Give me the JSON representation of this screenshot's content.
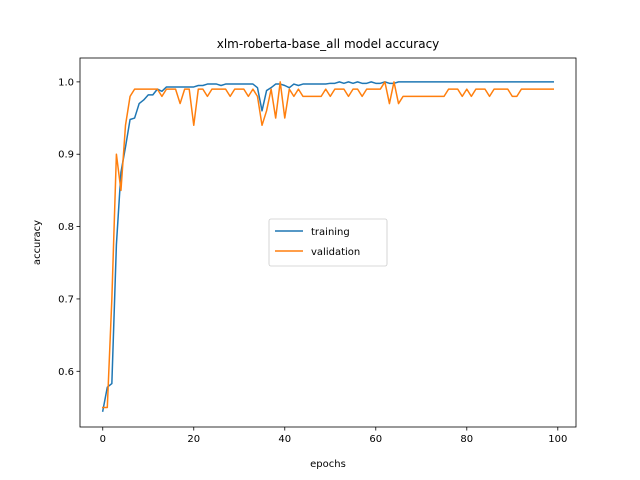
{
  "chart_data": {
    "type": "line",
    "title": "xlm-roberta-base_all model accuracy",
    "xlabel": "epochs",
    "ylabel": "accuracy",
    "xlim": [
      -5,
      104
    ],
    "ylim": [
      0.523,
      1.033
    ],
    "xticks": [
      0,
      20,
      40,
      60,
      80,
      100
    ],
    "yticks": [
      0.6,
      0.7,
      0.8,
      0.9,
      1.0
    ],
    "xtick_labels": [
      "0",
      "20",
      "40",
      "60",
      "80",
      "100"
    ],
    "ytick_labels": [
      "0.6",
      "0.7",
      "0.8",
      "0.9",
      "1.0"
    ],
    "legend_position": "center",
    "grid": false,
    "series": [
      {
        "name": "training",
        "color": "#1f77b4",
        "x": [
          0,
          1,
          2,
          3,
          4,
          5,
          6,
          7,
          8,
          9,
          10,
          11,
          12,
          13,
          14,
          15,
          16,
          17,
          18,
          19,
          20,
          21,
          22,
          23,
          24,
          25,
          26,
          27,
          28,
          29,
          30,
          31,
          32,
          33,
          34,
          35,
          36,
          37,
          38,
          39,
          40,
          41,
          42,
          43,
          44,
          45,
          46,
          47,
          48,
          49,
          50,
          51,
          52,
          53,
          54,
          55,
          56,
          57,
          58,
          59,
          60,
          61,
          62,
          63,
          64,
          65,
          66,
          67,
          68,
          69,
          70,
          71,
          72,
          73,
          74,
          75,
          76,
          77,
          78,
          79,
          80,
          81,
          82,
          83,
          84,
          85,
          86,
          87,
          88,
          89,
          90,
          91,
          92,
          93,
          94,
          95,
          96,
          97,
          98,
          99
        ],
        "y": [
          0.545,
          0.578,
          0.583,
          0.775,
          0.875,
          0.91,
          0.948,
          0.95,
          0.97,
          0.975,
          0.982,
          0.982,
          0.99,
          0.987,
          0.993,
          0.993,
          0.993,
          0.993,
          0.993,
          0.993,
          0.993,
          0.995,
          0.995,
          0.997,
          0.997,
          0.997,
          0.995,
          0.997,
          0.997,
          0.997,
          0.997,
          0.997,
          0.997,
          0.997,
          0.992,
          0.96,
          0.988,
          0.992,
          0.997,
          0.997,
          0.995,
          0.992,
          0.997,
          0.995,
          0.997,
          0.997,
          0.997,
          0.997,
          0.997,
          0.997,
          0.998,
          0.998,
          1.0,
          0.998,
          1.0,
          0.998,
          1.0,
          0.998,
          0.998,
          1.0,
          0.998,
          0.998,
          1.0,
          0.998,
          0.998,
          1.0,
          1.0,
          1.0,
          1.0,
          1.0,
          1.0,
          1.0,
          1.0,
          1.0,
          1.0,
          1.0,
          1.0,
          1.0,
          1.0,
          1.0,
          1.0,
          1.0,
          1.0,
          1.0,
          1.0,
          1.0,
          1.0,
          1.0,
          1.0,
          1.0,
          1.0,
          1.0,
          1.0,
          1.0,
          1.0,
          1.0,
          1.0,
          1.0,
          1.0,
          1.0
        ]
      },
      {
        "name": "validation",
        "color": "#ff7f0e",
        "x": [
          0,
          1,
          2,
          3,
          4,
          5,
          6,
          7,
          8,
          9,
          10,
          11,
          12,
          13,
          14,
          15,
          16,
          17,
          18,
          19,
          20,
          21,
          22,
          23,
          24,
          25,
          26,
          27,
          28,
          29,
          30,
          31,
          32,
          33,
          34,
          35,
          36,
          37,
          38,
          39,
          40,
          41,
          42,
          43,
          44,
          45,
          46,
          47,
          48,
          49,
          50,
          51,
          52,
          53,
          54,
          55,
          56,
          57,
          58,
          59,
          60,
          61,
          62,
          63,
          64,
          65,
          66,
          67,
          68,
          69,
          70,
          71,
          72,
          73,
          74,
          75,
          76,
          77,
          78,
          79,
          80,
          81,
          82,
          83,
          84,
          85,
          86,
          87,
          88,
          89,
          90,
          91,
          92,
          93,
          94,
          95,
          96,
          97,
          98,
          99
        ],
        "y": [
          0.55,
          0.55,
          0.7,
          0.9,
          0.85,
          0.94,
          0.98,
          0.99,
          0.99,
          0.99,
          0.99,
          0.99,
          0.99,
          0.98,
          0.99,
          0.99,
          0.99,
          0.97,
          0.99,
          0.99,
          0.94,
          0.99,
          0.99,
          0.98,
          0.99,
          0.99,
          0.99,
          0.99,
          0.98,
          0.99,
          0.99,
          0.99,
          0.98,
          0.99,
          0.98,
          0.94,
          0.96,
          0.99,
          0.95,
          1.0,
          0.95,
          0.99,
          0.98,
          0.99,
          0.98,
          0.98,
          0.98,
          0.98,
          0.98,
          0.99,
          0.98,
          0.99,
          0.99,
          0.99,
          0.98,
          0.99,
          0.99,
          0.98,
          0.99,
          0.99,
          0.99,
          0.99,
          1.0,
          0.97,
          1.0,
          0.97,
          0.98,
          0.98,
          0.98,
          0.98,
          0.98,
          0.98,
          0.98,
          0.98,
          0.98,
          0.98,
          0.99,
          0.99,
          0.99,
          0.98,
          0.99,
          0.98,
          0.99,
          0.99,
          0.99,
          0.98,
          0.99,
          0.99,
          0.99,
          0.99,
          0.98,
          0.98,
          0.99,
          0.99,
          0.99,
          0.99,
          0.99,
          0.99,
          0.99,
          0.99
        ]
      }
    ]
  }
}
